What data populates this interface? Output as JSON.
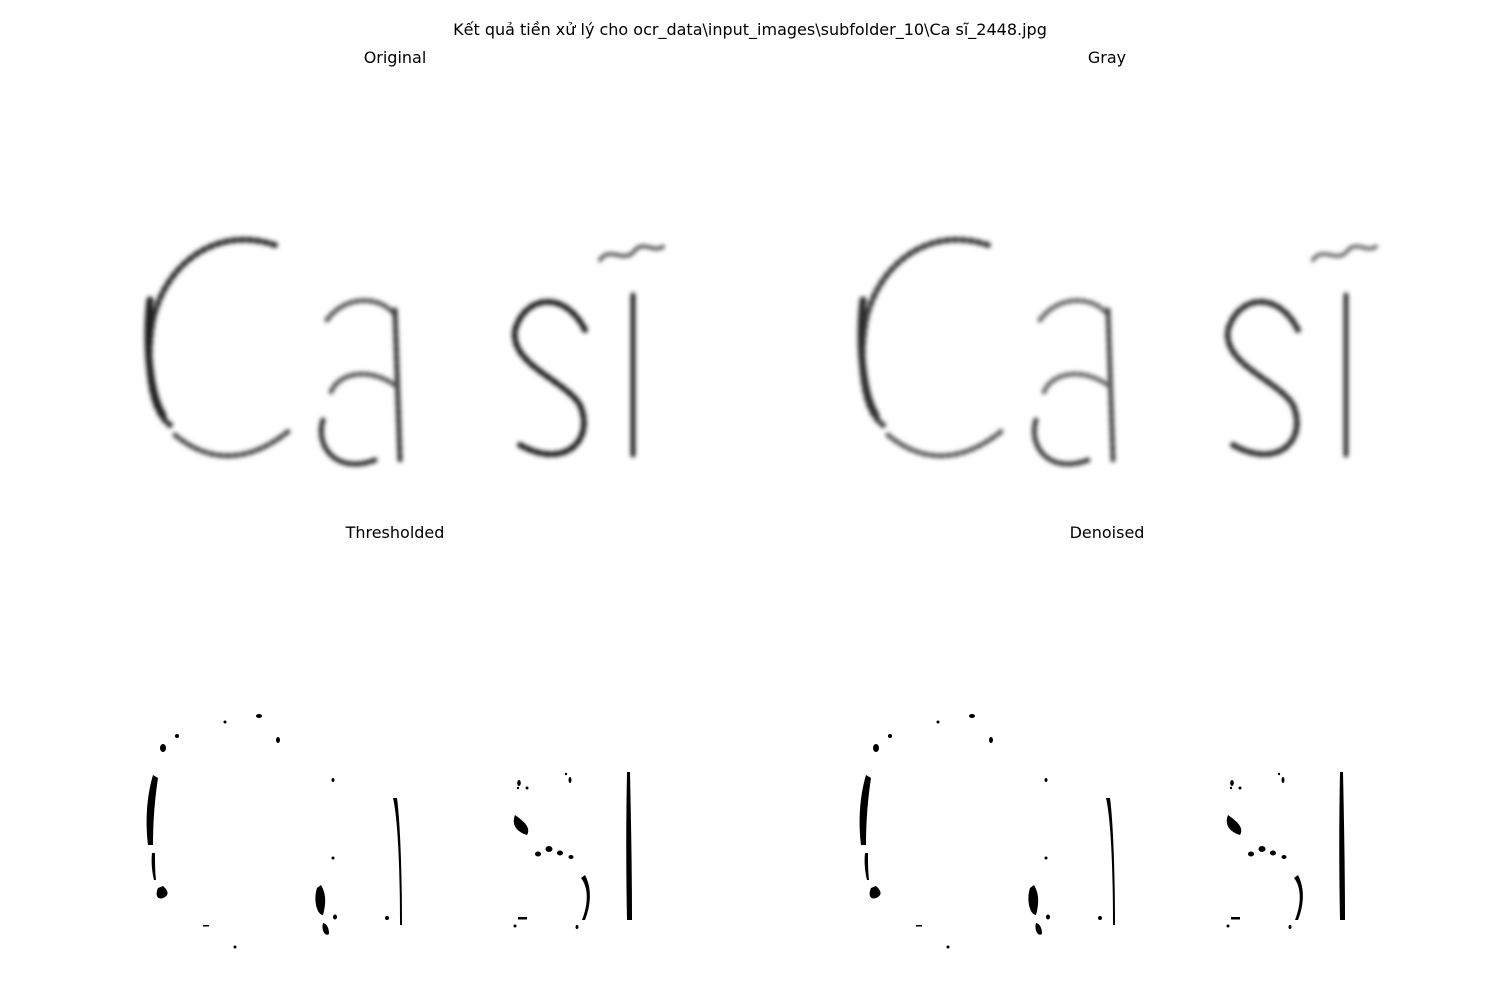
{
  "figure": {
    "suptitle": "Kết quả tiền xử lý cho ocr_data\\input_images\\subfolder_10\\Ca sĩ_2448.jpg"
  },
  "panels": [
    {
      "title": "Original",
      "image": "ocr-word-image",
      "word": "Ca sĩ"
    },
    {
      "title": "Gray",
      "image": "ocr-word-image-grayscale",
      "word": "Ca sĩ"
    },
    {
      "title": "Thresholded",
      "image": "binarized-word-image",
      "word": "Ca sĩ"
    },
    {
      "title": "Denoised",
      "image": "denoised-word-image",
      "word": "Ca sĩ"
    }
  ],
  "colors": {
    "background": "#ffffff",
    "ink": "#000000",
    "gray_ink": "#3a3a3a"
  }
}
